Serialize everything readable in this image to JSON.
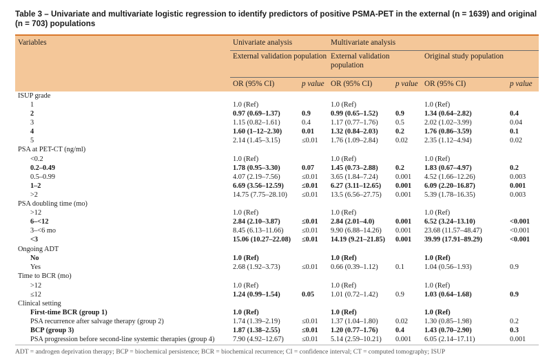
{
  "caption": "Table 3 – Univariate and multivariate logistic regression to identify predictors of positive PSMA-PET in the external (n = 1639) and original (n = 703) populations",
  "header": {
    "variables": "Variables",
    "univariate": "Univariate analysis",
    "multivariate": "Multivariate analysis",
    "ext_pop_uni": "External validation population",
    "ext_pop_multi": "External validation population",
    "orig_pop": "Original study population",
    "or_label": "OR (95% CI)",
    "p_label": "p value"
  },
  "sections": [
    {
      "title": "ISUP grade",
      "rows": [
        {
          "label": "1",
          "bold": false,
          "u_or": "1.0 (Ref)",
          "u_p": "",
          "u_b": false,
          "m_or": "1.0 (Ref)",
          "m_p": "",
          "m_b": false,
          "o_or": "1.0 (Ref)",
          "o_p": "",
          "o_b": false
        },
        {
          "label": "2",
          "bold": true,
          "u_or": "0.97 (0.69–1.37)",
          "u_p": "0.9",
          "u_b": true,
          "m_or": "0.99 (0.65–1.52)",
          "m_p": "0.9",
          "m_b": true,
          "o_or": "1.34 (0.64–2.82)",
          "o_p": "0.4",
          "o_b": true
        },
        {
          "label": "3",
          "bold": false,
          "u_or": "1.15 (0.82–1.61)",
          "u_p": "0.4",
          "u_b": false,
          "m_or": "1.17 (0.77–1.76)",
          "m_p": "0.5",
          "m_b": false,
          "o_or": "2.02 (1.02–3.99)",
          "o_p": "0.04",
          "o_b": false
        },
        {
          "label": "4",
          "bold": true,
          "u_or": "1.60 (1–12–2.30)",
          "u_p": "0.01",
          "u_b": true,
          "m_or": "1.32 (0.84–2.03)",
          "m_p": "0.2",
          "m_b": true,
          "o_or": "1.76 (0.86–3.59)",
          "o_p": "0.1",
          "o_b": true
        },
        {
          "label": "5",
          "bold": false,
          "u_or": "2.14 (1.45–3.15)",
          "u_p": "≤0.01",
          "u_b": false,
          "m_or": "1.76 (1.09–2.84)",
          "m_p": "0.02",
          "m_b": false,
          "o_or": "2.35 (1.12–4.94)",
          "o_p": "0.02",
          "o_b": false
        }
      ]
    },
    {
      "title": "PSA at PET-CT (ng/ml)",
      "rows": [
        {
          "label": "<0.2",
          "bold": false,
          "u_or": "1.0 (Ref)",
          "u_p": "",
          "u_b": false,
          "m_or": "1.0 (Ref)",
          "m_p": "",
          "m_b": false,
          "o_or": "1.0 (Ref)",
          "o_p": "",
          "o_b": false
        },
        {
          "label": "0.2–0.49",
          "bold": true,
          "u_or": "1.78 (0.95–3.30)",
          "u_p": "0.07",
          "u_b": true,
          "m_or": "1.45 (0.73–2.88)",
          "m_p": "0.2",
          "m_b": true,
          "o_or": "1.83 (0.67–4.97)",
          "o_p": "0.2",
          "o_b": true
        },
        {
          "label": "0.5–0.99",
          "bold": false,
          "u_or": "4.07 (2.19–7.56)",
          "u_p": "≤0.01",
          "u_b": false,
          "m_or": "3.65 (1.84–7.24)",
          "m_p": "0.001",
          "m_b": false,
          "o_or": "4.52 (1.66–12.26)",
          "o_p": "0.003",
          "o_b": false
        },
        {
          "label": "1–2",
          "bold": true,
          "u_or": "6.69 (3.56–12.59)",
          "u_p": "≤0.01",
          "u_b": true,
          "m_or": "6.27 (3.11–12.65)",
          "m_p": "0.001",
          "m_b": true,
          "o_or": "6.09 (2.20–16.87)",
          "o_p": "0.001",
          "o_b": true
        },
        {
          "label": ">2",
          "bold": false,
          "u_or": "14.75 (7.75–28.10)",
          "u_p": "≤0.01",
          "u_b": false,
          "m_or": "13.5 (6.56–27.75)",
          "m_p": "0.001",
          "m_b": false,
          "o_or": "5.39 (1.78–16.35)",
          "o_p": "0.003",
          "o_b": false
        }
      ]
    },
    {
      "title": "PSA doubling time (mo)",
      "rows": [
        {
          "label": ">12",
          "bold": false,
          "u_or": "1.0 (Ref)",
          "u_p": "",
          "u_b": false,
          "m_or": "1.0 (Ref)",
          "m_p": "",
          "m_b": false,
          "o_or": "1.0 (Ref)",
          "o_p": "",
          "o_b": false
        },
        {
          "label": "6–<12",
          "bold": true,
          "u_or": "2.84 (2.10–3.87)",
          "u_p": "≤0.01",
          "u_b": true,
          "m_or": "2.84 (2.01–4.0)",
          "m_p": "0.001",
          "m_b": true,
          "o_or": "6.52 (3.24–13.10)",
          "o_p": "<0.001",
          "o_b": true
        },
        {
          "label": "3–<6 mo",
          "bold": false,
          "u_or": "8.45 (6.13–11.66)",
          "u_p": "≤0.01",
          "u_b": false,
          "m_or": "9.90 (6.88–14.26)",
          "m_p": "0.001",
          "m_b": false,
          "o_or": "23.68 (11.57–48.47)",
          "o_p": "<0.001",
          "o_b": false
        },
        {
          "label": "<3",
          "bold": true,
          "u_or": "15.06 (10.27–22.08)",
          "u_p": "≤0.01",
          "u_b": true,
          "m_or": "14.19 (9.21–21.85)",
          "m_p": "0.001",
          "m_b": true,
          "o_or": "39.99 (17.91–89.29)",
          "o_p": "<0.001",
          "o_b": true
        }
      ]
    },
    {
      "title": "Ongoing ADT",
      "rows": [
        {
          "label": "No",
          "bold": true,
          "u_or": "1.0 (Ref)",
          "u_p": "",
          "u_b": true,
          "m_or": "1.0 (Ref)",
          "m_p": "",
          "m_b": true,
          "o_or": "1.0 (Ref)",
          "o_p": "",
          "o_b": true
        },
        {
          "label": "Yes",
          "bold": false,
          "u_or": "2.68 (1.92–3.73)",
          "u_p": "≤0.01",
          "u_b": false,
          "m_or": "0.66 (0.39–1.12)",
          "m_p": "0.1",
          "m_b": false,
          "o_or": "1.04 (0.56–1.93)",
          "o_p": "0.9",
          "o_b": false
        }
      ]
    },
    {
      "title": "Time to BCR (mo)",
      "rows": [
        {
          "label": ">12",
          "bold": false,
          "u_or": "1.0 (Ref)",
          "u_p": "",
          "u_b": false,
          "m_or": "1.0 (Ref)",
          "m_p": "",
          "m_b": false,
          "o_or": "1.0 (Ref)",
          "o_p": "",
          "o_b": false
        },
        {
          "label": "≤12",
          "bold": false,
          "u_or": "1.24 (0.99–1.54)",
          "u_p": "0.05",
          "u_b": true,
          "m_or": "1.01 (0.72–1.42)",
          "m_p": "0.9",
          "m_b": false,
          "o_or": "1.03 (0.64–1.68)",
          "o_p": "0.9",
          "o_b": true
        }
      ]
    },
    {
      "title": "Clinical setting",
      "rows": [
        {
          "label": "First-time BCR (group 1)",
          "bold": true,
          "u_or": "1.0 (Ref)",
          "u_p": "",
          "u_b": true,
          "m_or": "1.0 (Ref)",
          "m_p": "",
          "m_b": true,
          "o_or": "1.0 (Ref)",
          "o_p": "",
          "o_b": true
        },
        {
          "label": "PSA recurrence after salvage therapy (group 2)",
          "bold": false,
          "u_or": "1.74 (1.39–2.19)",
          "u_p": "≤0.01",
          "u_b": false,
          "m_or": "1.37 (1.04–1.80)",
          "m_p": "0.02",
          "m_b": false,
          "o_or": "1.30 (0.85–1.98)",
          "o_p": "0.2",
          "o_b": false
        },
        {
          "label": "BCP (group 3)",
          "bold": true,
          "u_or": "1.87 (1.38–2.55)",
          "u_p": "≤0.01",
          "u_b": true,
          "m_or": "1.20 (0.77–1.76)",
          "m_p": "0.4",
          "m_b": true,
          "o_or": "1.43 (0.70–2.90)",
          "o_p": "0.3",
          "o_b": true
        },
        {
          "label": "PSA progression before second-line systemic therapies (group 4)",
          "bold": false,
          "u_or": "7.90 (4.92–12.67)",
          "u_p": "≤0.01",
          "u_b": false,
          "m_or": "5.14 (2.59–10.21)",
          "m_p": "0.001",
          "m_b": false,
          "o_or": "6.05 (2.14–17.11)",
          "o_p": "0.001",
          "o_b": false
        }
      ]
    }
  ],
  "footer": "ADT = androgen deprivation therapy; BCP = biochemical persistence; BCR = biochemical recurrence; CI = confidence interval; CT = computed tomography; ISUP",
  "colors": {
    "header_bg": "#f4c799",
    "accent_rule": "#d9772b"
  }
}
